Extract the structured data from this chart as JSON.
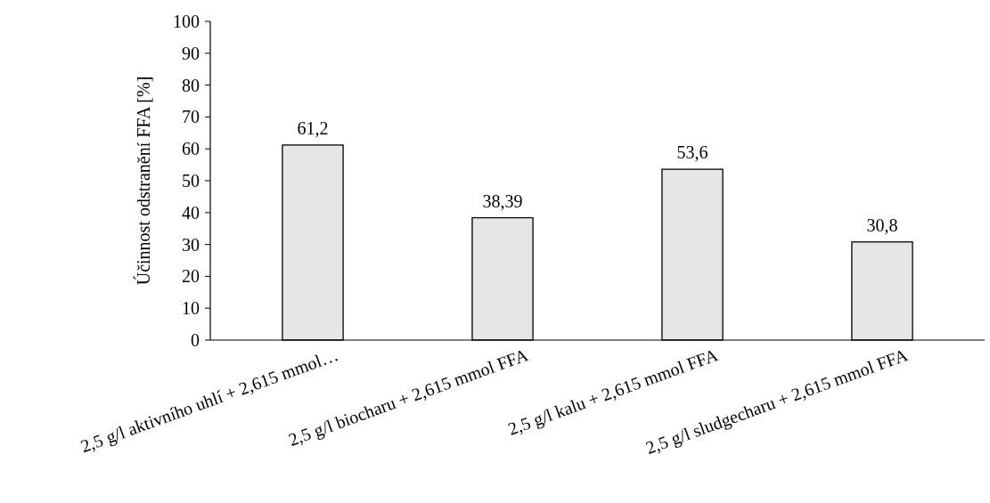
{
  "chart_data": {
    "type": "bar",
    "ylabel": "Účinnost odstranění FFA [%]",
    "categories": [
      "2,5 g/l aktivního uhlí + 2,615 mmol…",
      "2,5 g/l biocharu + 2,615 mmol FFA",
      "2,5 g/l kalu + 2,615 mmol FFA",
      "2,5 g/l sludgecharu + 2,615 mmol FFA"
    ],
    "values": [
      61.2,
      38.39,
      53.6,
      30.8
    ],
    "value_labels": [
      "61,2",
      "38,39",
      "53,6",
      "30,8"
    ],
    "color": "#e7e6e6",
    "ylim": [
      0,
      100
    ],
    "yticks": [
      0,
      10,
      20,
      30,
      40,
      50,
      60,
      70,
      80,
      90,
      100
    ],
    "grid": false
  }
}
